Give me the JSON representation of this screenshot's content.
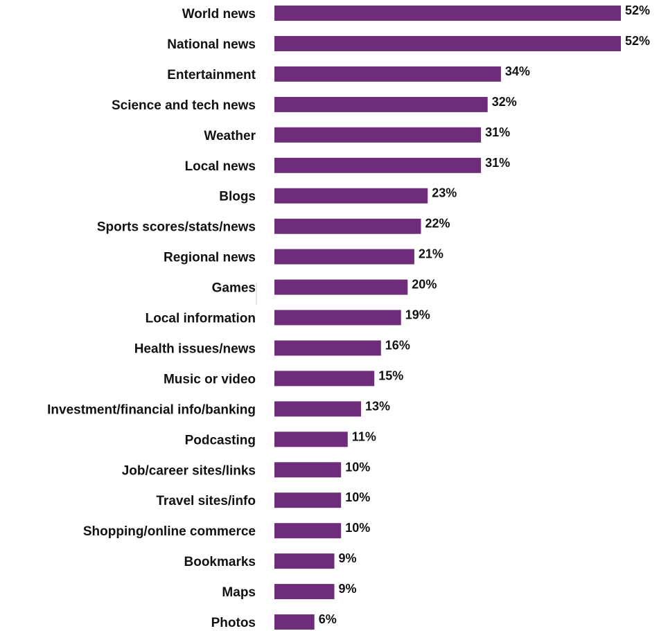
{
  "chart_data": {
    "type": "bar",
    "orientation": "horizontal",
    "categories": [
      "World news",
      "National news",
      "Entertainment",
      "Science and tech news",
      "Weather",
      "Local news",
      "Blogs",
      "Sports scores/stats/news",
      "Regional news",
      "Games",
      "Local information",
      "Health issues/news",
      "Music or video",
      "Investment/financial info/banking",
      "Podcasting",
      "Job/career sites/links",
      "Travel sites/info",
      "Shopping/online commerce",
      "Bookmarks",
      "Maps",
      "Photos"
    ],
    "values": [
      52,
      52,
      34,
      32,
      31,
      31,
      23,
      22,
      21,
      20,
      19,
      16,
      15,
      13,
      11,
      10,
      10,
      10,
      9,
      9,
      6
    ],
    "value_labels": [
      "52%",
      "52%",
      "34%",
      "32%",
      "31%",
      "31%",
      "23%",
      "22%",
      "21%",
      "20%",
      "19%",
      "16%",
      "15%",
      "13%",
      "11%",
      "10%",
      "10%",
      "10%",
      "9%",
      "9%",
      "6%"
    ],
    "value_unit": "%",
    "xlim": [
      0,
      52
    ],
    "title": "",
    "xlabel": "",
    "ylabel": "",
    "grid": false,
    "legend": "none",
    "bar_color": "#6e2c7a"
  }
}
